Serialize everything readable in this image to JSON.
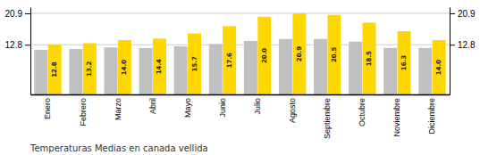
{
  "chart_data": {
    "type": "bar",
    "title": "Temperaturas Medias en canada vellida",
    "categories": [
      "Enero",
      "Febrero",
      "Marzo",
      "Abril",
      "Mayo",
      "Junio",
      "Julio",
      "Agosto",
      "Septiembre",
      "Octubre",
      "Noviembre",
      "Diciembre"
    ],
    "series": [
      {
        "color": "#C0C0C0",
        "values": [
          11.5,
          11.7,
          12.1,
          12.0,
          12.4,
          13.0,
          13.8,
          14.3,
          14.3,
          13.6,
          12.0,
          12.0
        ]
      },
      {
        "color": "#FFD700",
        "values": [
          12.8,
          13.2,
          14.0,
          14.4,
          15.7,
          17.6,
          20.0,
          20.9,
          20.5,
          18.5,
          16.3,
          14.0
        ],
        "value_labels": [
          "12.8",
          "13.2",
          "14.0",
          "14.4",
          "15.7",
          "17.6",
          "20.0",
          "20.9",
          "20.5",
          "18.5",
          "16.3",
          "14.0"
        ],
        "data_labels": true
      }
    ],
    "ylim": [
      0,
      22.5
    ],
    "yticks": [
      12.8,
      20.9
    ],
    "grid": true
  }
}
